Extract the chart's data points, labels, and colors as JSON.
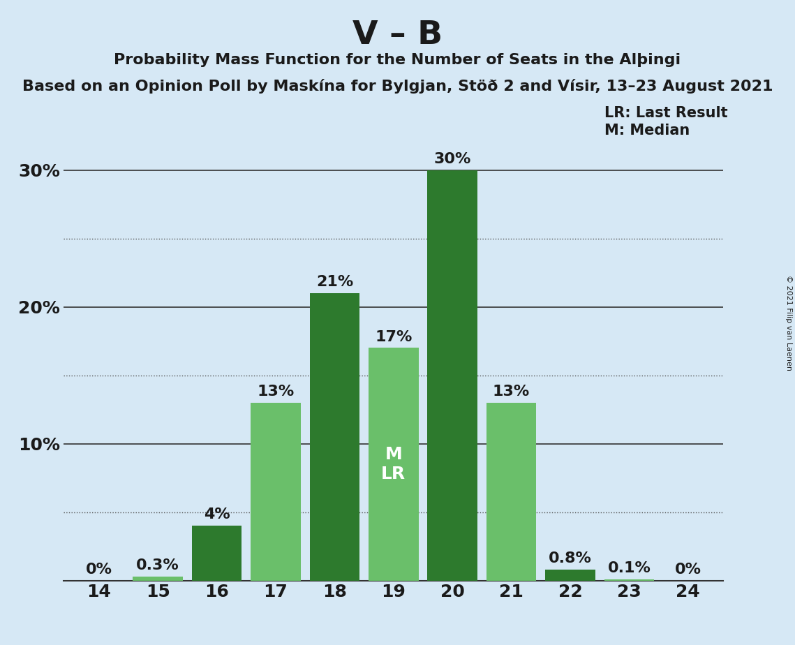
{
  "title": "V – B",
  "subtitle1": "Probability Mass Function for the Number of Seats in the Alþingi",
  "subtitle2": "Based on an Opinion Poll by Maskína for Bylgjan, Stöð 2 and Vísir, 13–23 August 2021",
  "copyright": "© 2021 Filip van Laenen",
  "seats": [
    14,
    15,
    16,
    17,
    18,
    19,
    20,
    21,
    22,
    23,
    24
  ],
  "values": [
    0.0,
    0.3,
    4.0,
    13.0,
    21.0,
    17.0,
    30.0,
    13.0,
    0.8,
    0.1,
    0.0
  ],
  "labels": [
    "0%",
    "0.3%",
    "4%",
    "13%",
    "21%",
    "17%",
    "30%",
    "13%",
    "0.8%",
    "0.1%",
    "0%"
  ],
  "median_seat": 19,
  "last_result_seat": 19,
  "dark_green": "#2d7a2d",
  "light_green": "#6abf6a",
  "background_color": "#d6e8f5",
  "dotted_yticks": [
    5,
    15,
    25
  ],
  "solid_yticks": [
    10,
    20,
    30
  ]
}
